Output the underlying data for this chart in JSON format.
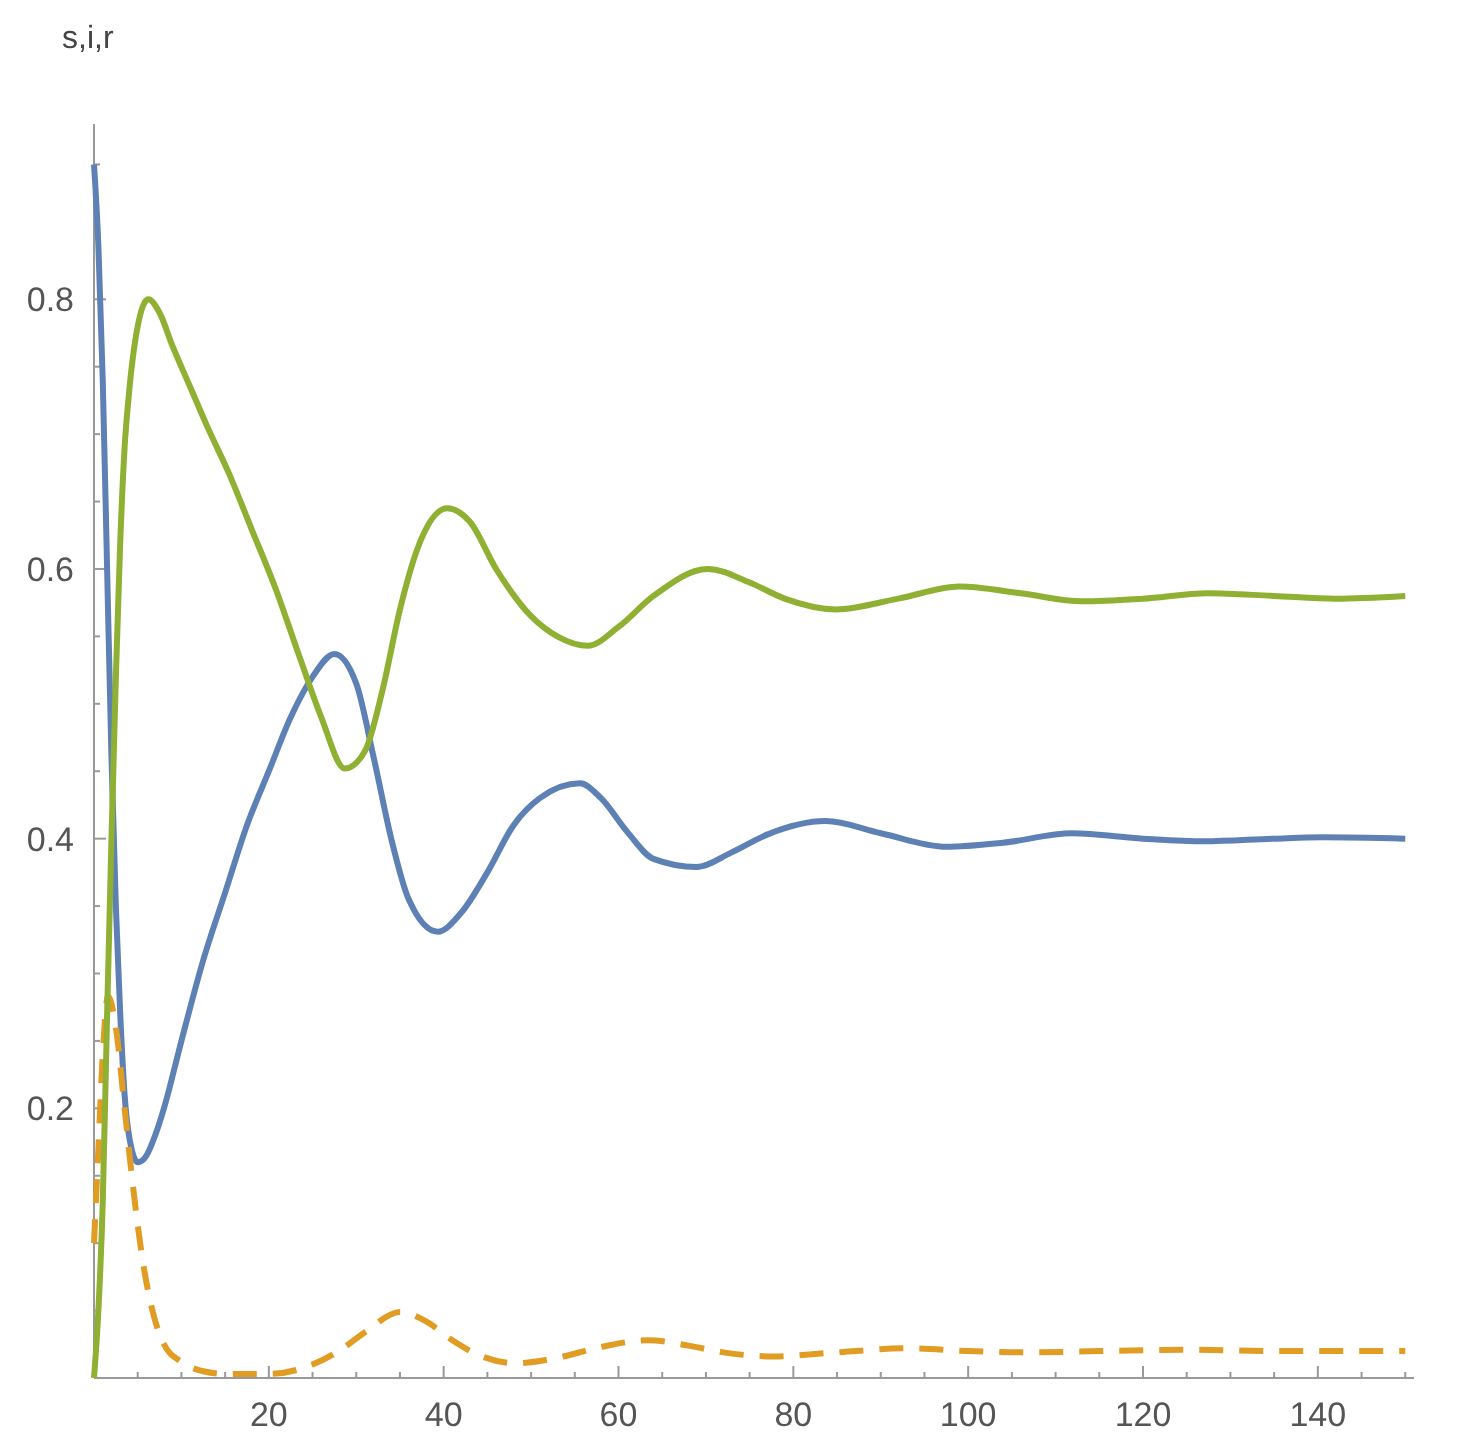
{
  "chart_data": {
    "type": "line",
    "ylabel": "s,i,r",
    "xlim": [
      0,
      151
    ],
    "ylim": [
      0,
      0.93
    ],
    "xticks": [
      {
        "value": 5,
        "label": null
      },
      {
        "value": 10,
        "label": null
      },
      {
        "value": 15,
        "label": null
      },
      20,
      {
        "value": 25,
        "label": null
      },
      {
        "value": 30,
        "label": null
      },
      {
        "value": 35,
        "label": null
      },
      40,
      {
        "value": 45,
        "label": null
      },
      {
        "value": 50,
        "label": null
      },
      {
        "value": 55,
        "label": null
      },
      60,
      {
        "value": 65,
        "label": null
      },
      {
        "value": 70,
        "label": null
      },
      {
        "value": 75,
        "label": null
      },
      80,
      {
        "value": 85,
        "label": null
      },
      {
        "value": 90,
        "label": null
      },
      {
        "value": 95,
        "label": null
      },
      100,
      {
        "value": 105,
        "label": null
      },
      {
        "value": 110,
        "label": null
      },
      {
        "value": 115,
        "label": null
      },
      120,
      {
        "value": 125,
        "label": null
      },
      {
        "value": 130,
        "label": null
      },
      {
        "value": 135,
        "label": null
      },
      140,
      {
        "value": 145,
        "label": null
      },
      {
        "value": 150,
        "label": null
      }
    ],
    "yticks": [
      {
        "value": 0.05,
        "label": null
      },
      {
        "value": 0.1,
        "label": null
      },
      {
        "value": 0.15,
        "label": null
      },
      0.2,
      {
        "value": 0.25,
        "label": null
      },
      {
        "value": 0.3,
        "label": null
      },
      {
        "value": 0.35,
        "label": null
      },
      0.4,
      {
        "value": 0.45,
        "label": null
      },
      {
        "value": 0.5,
        "label": null
      },
      {
        "value": 0.55,
        "label": null
      },
      0.6,
      {
        "value": 0.65,
        "label": null
      },
      {
        "value": 0.7,
        "label": null
      },
      {
        "value": 0.75,
        "label": null
      },
      0.8,
      {
        "value": 0.85,
        "label": null
      },
      {
        "value": 0.9,
        "label": null
      }
    ],
    "grid": false,
    "marker": "none",
    "series": [
      {
        "color": "#5e81b5",
        "line_style": "solid",
        "x": [
          0,
          0.5,
          1,
          1.5,
          2,
          2.5,
          3,
          3.5,
          4,
          5,
          6,
          7,
          8,
          10,
          12.5,
          15,
          17.5,
          20,
          22.5,
          25,
          27.5,
          30,
          32,
          34,
          36,
          39.3,
          42,
          45,
          48,
          51,
          55.6,
          58,
          61,
          64,
          68.9,
          73,
          77,
          83.7,
          90,
          97.5,
          104,
          111.9,
          120,
          127,
          135,
          140.5,
          150
        ],
        "values": [
          0.9,
          0.84,
          0.74,
          0.6,
          0.46,
          0.35,
          0.27,
          0.21,
          0.18,
          0.16,
          0.165,
          0.18,
          0.2,
          0.25,
          0.31,
          0.36,
          0.41,
          0.45,
          0.49,
          0.52,
          0.537,
          0.515,
          0.46,
          0.4,
          0.355,
          0.331,
          0.345,
          0.375,
          0.41,
          0.43,
          0.441,
          0.43,
          0.405,
          0.385,
          0.379,
          0.39,
          0.403,
          0.413,
          0.404,
          0.394,
          0.397,
          0.404,
          0.4,
          0.398,
          0.4,
          0.401,
          0.4
        ]
      },
      {
        "color": "#e19c24",
        "line_style": "dashed",
        "x": [
          0,
          0.5,
          1,
          1.6,
          2.5,
          3.5,
          4.5,
          5.5,
          6.5,
          8,
          10,
          12.5,
          15,
          20,
          25,
          28,
          31,
          35,
          38,
          41,
          44,
          48.3,
          53,
          58,
          63.4,
          68,
          72,
          77.7,
          85,
          92.9,
          100,
          107,
          115,
          125,
          135,
          150
        ],
        "values": [
          0.1,
          0.17,
          0.24,
          0.283,
          0.26,
          0.2,
          0.14,
          0.09,
          0.055,
          0.025,
          0.012,
          0.005,
          0.003,
          0.003,
          0.01,
          0.02,
          0.034,
          0.049,
          0.042,
          0.028,
          0.017,
          0.011,
          0.015,
          0.023,
          0.028,
          0.024,
          0.019,
          0.016,
          0.019,
          0.022,
          0.02,
          0.019,
          0.02,
          0.021,
          0.02,
          0.02
        ]
      },
      {
        "color": "#8fb032",
        "line_style": "solid",
        "x": [
          0,
          0.5,
          1,
          1.5,
          2,
          2.5,
          3,
          3.5,
          4,
          5,
          6.2,
          7.5,
          9,
          11,
          13,
          15.5,
          18,
          20.8,
          23.5,
          26,
          28.7,
          31,
          33,
          35,
          37,
          40.4,
          43,
          46,
          50,
          53,
          56.5,
          60,
          64,
          70.2,
          75,
          79,
          84.9,
          92,
          99,
          106,
          113,
          120,
          127.4,
          135,
          142,
          150
        ],
        "values": [
          0,
          0.05,
          0.13,
          0.27,
          0.4,
          0.52,
          0.62,
          0.69,
          0.73,
          0.78,
          0.8,
          0.79,
          0.765,
          0.735,
          0.705,
          0.67,
          0.63,
          0.585,
          0.535,
          0.49,
          0.452,
          0.465,
          0.51,
          0.57,
          0.615,
          0.645,
          0.635,
          0.6,
          0.565,
          0.55,
          0.543,
          0.557,
          0.58,
          0.6,
          0.59,
          0.578,
          0.57,
          0.578,
          0.587,
          0.582,
          0.576,
          0.578,
          0.582,
          0.58,
          0.578,
          0.58
        ]
      }
    ]
  }
}
